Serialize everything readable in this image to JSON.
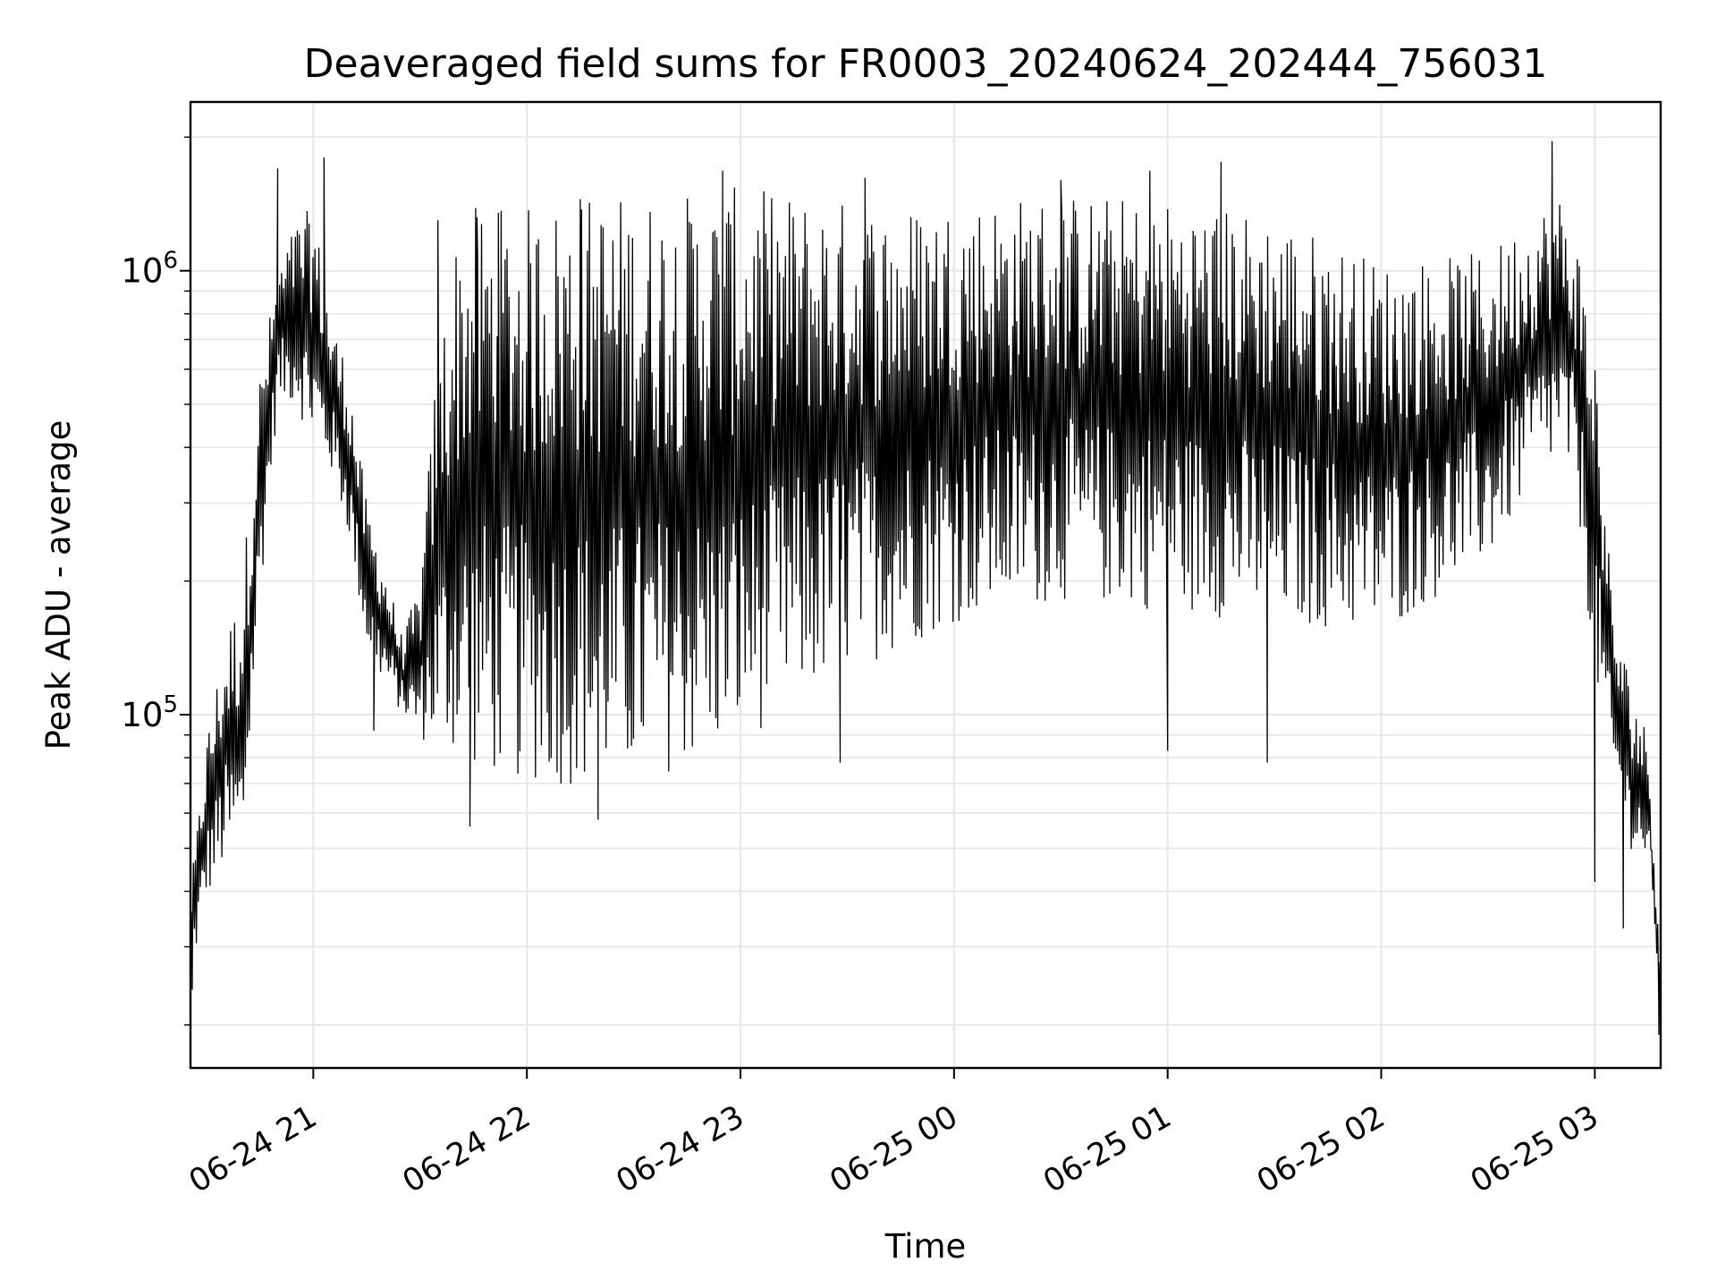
{
  "chart_data": {
    "type": "line",
    "title": "Deaveraged field sums for FR0003_20240624_202444_756031",
    "xlabel": "Time",
    "ylabel": "Peak ADU - average",
    "x_range": [
      "2024-06-24 20:25:30",
      "2024-06-25 03:18:30"
    ],
    "ylim": [
      16000,
      2400000
    ],
    "yscale": "log",
    "grid": true,
    "line_color": "#000000",
    "grid_color": "#e6e6e6",
    "x_ticks": [
      {
        "t": "2024-06-24 21:00",
        "label": "06-24 21"
      },
      {
        "t": "2024-06-24 22:00",
        "label": "06-24 22"
      },
      {
        "t": "2024-06-24 23:00",
        "label": "06-24 23"
      },
      {
        "t": "2024-06-25 00:00",
        "label": "06-25 00"
      },
      {
        "t": "2024-06-25 01:00",
        "label": "06-25 01"
      },
      {
        "t": "2024-06-25 02:00",
        "label": "06-25 02"
      },
      {
        "t": "2024-06-25 03:00",
        "label": "06-25 03"
      }
    ],
    "y_major_ticks": [
      {
        "value": 100000,
        "base": "10",
        "exp": "5"
      },
      {
        "value": 1000000,
        "base": "10",
        "exp": "6"
      }
    ],
    "series": [
      {
        "envelope": {
          "time": [
            "2024-06-24 20:25:30",
            "2024-06-24 20:30",
            "2024-06-24 20:35",
            "2024-06-24 20:40",
            "2024-06-24 20:45",
            "2024-06-24 20:50",
            "2024-06-24 20:55",
            "2024-06-24 21:00",
            "2024-06-24 21:05",
            "2024-06-24 21:10",
            "2024-06-24 21:15",
            "2024-06-24 21:20",
            "2024-06-24 21:25",
            "2024-06-24 21:30",
            "2024-06-24 21:35",
            "2024-06-24 21:40",
            "2024-06-24 21:45",
            "2024-06-24 21:50",
            "2024-06-24 22:00",
            "2024-06-24 22:15",
            "2024-06-24 22:30",
            "2024-06-24 22:45",
            "2024-06-24 23:00",
            "2024-06-24 23:15",
            "2024-06-24 23:30",
            "2024-06-24 23:45",
            "2024-06-25 00:00",
            "2024-06-25 00:30",
            "2024-06-25 01:00",
            "2024-06-25 01:30",
            "2024-06-25 02:00",
            "2024-06-25 02:30",
            "2024-06-25 02:40",
            "2024-06-25 02:50",
            "2024-06-25 02:55",
            "2024-06-25 03:00",
            "2024-06-25 03:05",
            "2024-06-25 03:10",
            "2024-06-25 03:15",
            "2024-06-25 03:18:30"
          ],
          "low": [
            25000,
            38000,
            45000,
            45000,
            180000,
            500000,
            500000,
            400000,
            350000,
            250000,
            140000,
            115000,
            100000,
            88000,
            82000,
            80000,
            75000,
            72000,
            70000,
            68000,
            70000,
            76000,
            85000,
            105000,
            125000,
            140000,
            160000,
            180000,
            170000,
            160000,
            150000,
            220000,
            300000,
            380000,
            300000,
            120000,
            70000,
            50000,
            45000,
            19000
          ],
          "high": [
            40000,
            90000,
            150000,
            200000,
            600000,
            1000000,
            1300000,
            1400000,
            800000,
            600000,
            300000,
            220000,
            150000,
            200000,
            700000,
            1200000,
            1400000,
            1400000,
            1400000,
            1500000,
            1500000,
            1500000,
            1550000,
            1500000,
            1450000,
            1400000,
            1450000,
            1500000,
            1450000,
            1350000,
            1050000,
            1100000,
            1300000,
            1500000,
            1200000,
            700000,
            180000,
            120000,
            90000,
            30000
          ]
        },
        "peaks": [
          {
            "t": "2024-06-24 20:50",
            "value": 1700000
          },
          {
            "t": "2024-06-24 21:03",
            "value": 1800000
          },
          {
            "t": "2024-06-24 21:35",
            "value": 1300000
          },
          {
            "t": "2024-06-24 21:46",
            "value": 1320000
          },
          {
            "t": "2024-06-24 21:52",
            "value": 1350000
          },
          {
            "t": "2024-06-24 22:15",
            "value": 1450000
          },
          {
            "t": "2024-06-24 22:55",
            "value": 1680000
          },
          {
            "t": "2024-06-24 23:35",
            "value": 1620000
          },
          {
            "t": "2024-06-25 00:30",
            "value": 1600000
          },
          {
            "t": "2024-06-25 00:55",
            "value": 1680000
          },
          {
            "t": "2024-06-25 01:15",
            "value": 1760000
          },
          {
            "t": "2024-06-25 02:48",
            "value": 1960000
          }
        ],
        "troughs": [
          {
            "t": "2024-06-24 20:26",
            "value": 24000
          },
          {
            "t": "2024-06-24 21:17",
            "value": 92000
          },
          {
            "t": "2024-06-24 21:44",
            "value": 56000
          },
          {
            "t": "2024-06-24 22:20",
            "value": 58000
          },
          {
            "t": "2024-06-24 23:28",
            "value": 78000
          },
          {
            "t": "2024-06-25 01:00",
            "value": 83000
          },
          {
            "t": "2024-06-25 01:28",
            "value": 78000
          },
          {
            "t": "2024-06-25 03:00",
            "value": 42000
          },
          {
            "t": "2024-06-25 03:08",
            "value": 33000
          },
          {
            "t": "2024-06-25 03:18",
            "value": 19000
          }
        ]
      }
    ]
  }
}
